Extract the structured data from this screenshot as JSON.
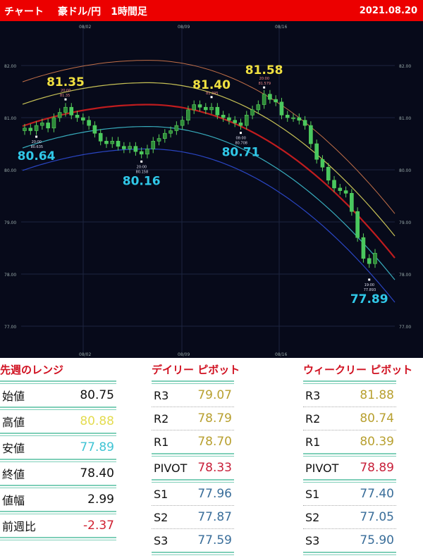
{
  "header": {
    "left": "チャート",
    "title": "豪ドル/円　1時間足",
    "date": "2021.08.20"
  },
  "chart_data": {
    "type": "candlestick",
    "x_ticks": [
      "08/02",
      "08/09",
      "08/16"
    ],
    "y_ticks": [
      "82.00",
      "81.00",
      "80.00",
      "79.00",
      "78.00",
      "77.00"
    ],
    "ylim": [
      76.8,
      82.6
    ],
    "closes": [
      80.8,
      80.75,
      80.85,
      80.9,
      80.8,
      81.0,
      81.1,
      81.2,
      81.05,
      81.0,
      80.95,
      80.85,
      80.7,
      80.55,
      80.5,
      80.55,
      80.45,
      80.4,
      80.45,
      80.35,
      80.3,
      80.4,
      80.55,
      80.6,
      80.7,
      80.75,
      80.85,
      80.95,
      81.15,
      81.25,
      81.2,
      81.15,
      81.2,
      81.05,
      81.0,
      80.95,
      80.9,
      80.85,
      81.05,
      81.15,
      81.25,
      81.45,
      81.35,
      81.3,
      81.05,
      81.0,
      81.0,
      80.95,
      80.85,
      80.5,
      80.2,
      80.05,
      79.8,
      79.65,
      79.6,
      79.55,
      79.2,
      78.7,
      78.3,
      78.2,
      78.4
    ],
    "annotations": [
      {
        "label": "81.35",
        "time": "20:00",
        "value": "81.35",
        "kind": "high",
        "index": 7
      },
      {
        "label": "80.64",
        "time": "20:00",
        "value": "80.635",
        "kind": "low",
        "index": 2
      },
      {
        "label": "80.16",
        "time": "20:00",
        "value": "80.158",
        "kind": "low",
        "index": 20
      },
      {
        "label": "81.40",
        "time": "",
        "value": "81.395",
        "kind": "high",
        "index": 32
      },
      {
        "label": "80.71",
        "time": "08:00",
        "value": "80.708",
        "kind": "low",
        "index": 37
      },
      {
        "label": "81.58",
        "time": "20:00",
        "value": "81.579",
        "kind": "high",
        "index": 41
      },
      {
        "label": "77.89",
        "time": "19:00",
        "value": "77.893",
        "kind": "low",
        "index": 59
      }
    ],
    "colors": {
      "up": "#5ad25a",
      "band_outer_upper": "#e08050",
      "band_upper": "#e8e060",
      "center": "#e02020",
      "band_lower": "#40c8d8",
      "band_outer_lower": "#3050e0"
    }
  },
  "range": {
    "title": "先週のレンジ",
    "rows": [
      {
        "label": "始値",
        "value": "80.75",
        "color": "#111111"
      },
      {
        "label": "高値",
        "value": "80.88",
        "color": "#e4dc50"
      },
      {
        "label": "安値",
        "value": "77.89",
        "color": "#40c4d4"
      },
      {
        "label": "終値",
        "value": "78.40",
        "color": "#111111"
      },
      {
        "label": "値幅",
        "value": "2.99",
        "color": "#111111"
      },
      {
        "label": "前週比",
        "value": "-2.37",
        "color": "#d02030"
      }
    ]
  },
  "daily": {
    "title": "デイリー ピボット",
    "rows": [
      {
        "label": "R3",
        "value": "79.07",
        "color": "#b8a030"
      },
      {
        "label": "R2",
        "value": "78.79",
        "color": "#b8a030"
      },
      {
        "label": "R1",
        "value": "78.70",
        "color": "#b8a030"
      },
      {
        "label": "PIVOT",
        "value": "78.33",
        "color": "#c8203a"
      },
      {
        "label": "S1",
        "value": "77.96",
        "color": "#3a6e9a"
      },
      {
        "label": "S2",
        "value": "77.87",
        "color": "#3a6e9a"
      },
      {
        "label": "S3",
        "value": "77.59",
        "color": "#3a6e9a"
      }
    ]
  },
  "weekly": {
    "title": "ウィークリー ピボット",
    "rows": [
      {
        "label": "R3",
        "value": "81.88",
        "color": "#b8a030"
      },
      {
        "label": "R2",
        "value": "80.74",
        "color": "#b8a030"
      },
      {
        "label": "R1",
        "value": "80.39",
        "color": "#b8a030"
      },
      {
        "label": "PIVOT",
        "value": "78.89",
        "color": "#c8203a"
      },
      {
        "label": "S1",
        "value": "77.40",
        "color": "#3a6e9a"
      },
      {
        "label": "S2",
        "value": "77.05",
        "color": "#3a6e9a"
      },
      {
        "label": "S3",
        "value": "75.90",
        "color": "#3a6e9a"
      }
    ]
  }
}
